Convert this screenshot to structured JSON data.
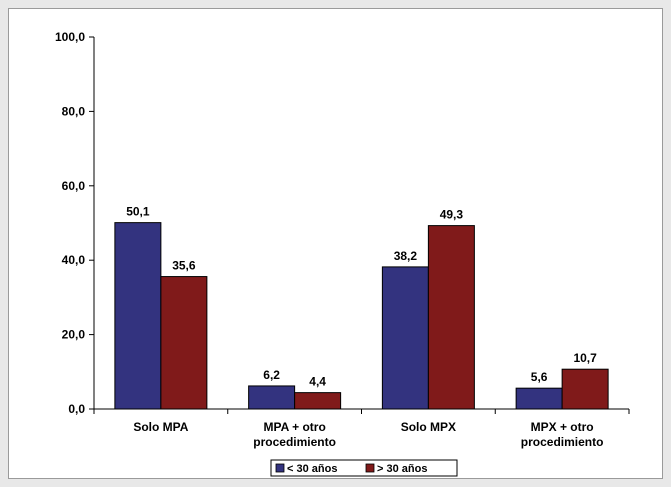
{
  "chart_data": {
    "type": "bar",
    "title": "",
    "xlabel": "",
    "ylabel": "",
    "ylim": [
      0,
      100
    ],
    "yticks": [
      "0,0",
      "20,0",
      "40,0",
      "60,0",
      "80,0",
      "100,0"
    ],
    "ytick_values": [
      0,
      20,
      40,
      60,
      80,
      100
    ],
    "categories": [
      [
        "Solo MPA"
      ],
      [
        "MPA + otro",
        "procedimiento"
      ],
      [
        "Solo MPX"
      ],
      [
        "MPX + otro",
        "procedimiento"
      ]
    ],
    "series": [
      {
        "name": "< 30 años",
        "color": "#33337f",
        "values": [
          50.1,
          6.2,
          38.2,
          5.6
        ],
        "labels": [
          "50,1",
          "6,2",
          "38,2",
          "5,6"
        ]
      },
      {
        "name": "> 30 años",
        "color": "#801a1a",
        "values": [
          35.6,
          4.4,
          49.3,
          10.7
        ],
        "labels": [
          "35,6",
          "4,4",
          "49,3",
          "10,7"
        ]
      }
    ],
    "legend_position": "bottom-center",
    "grid": false
  }
}
